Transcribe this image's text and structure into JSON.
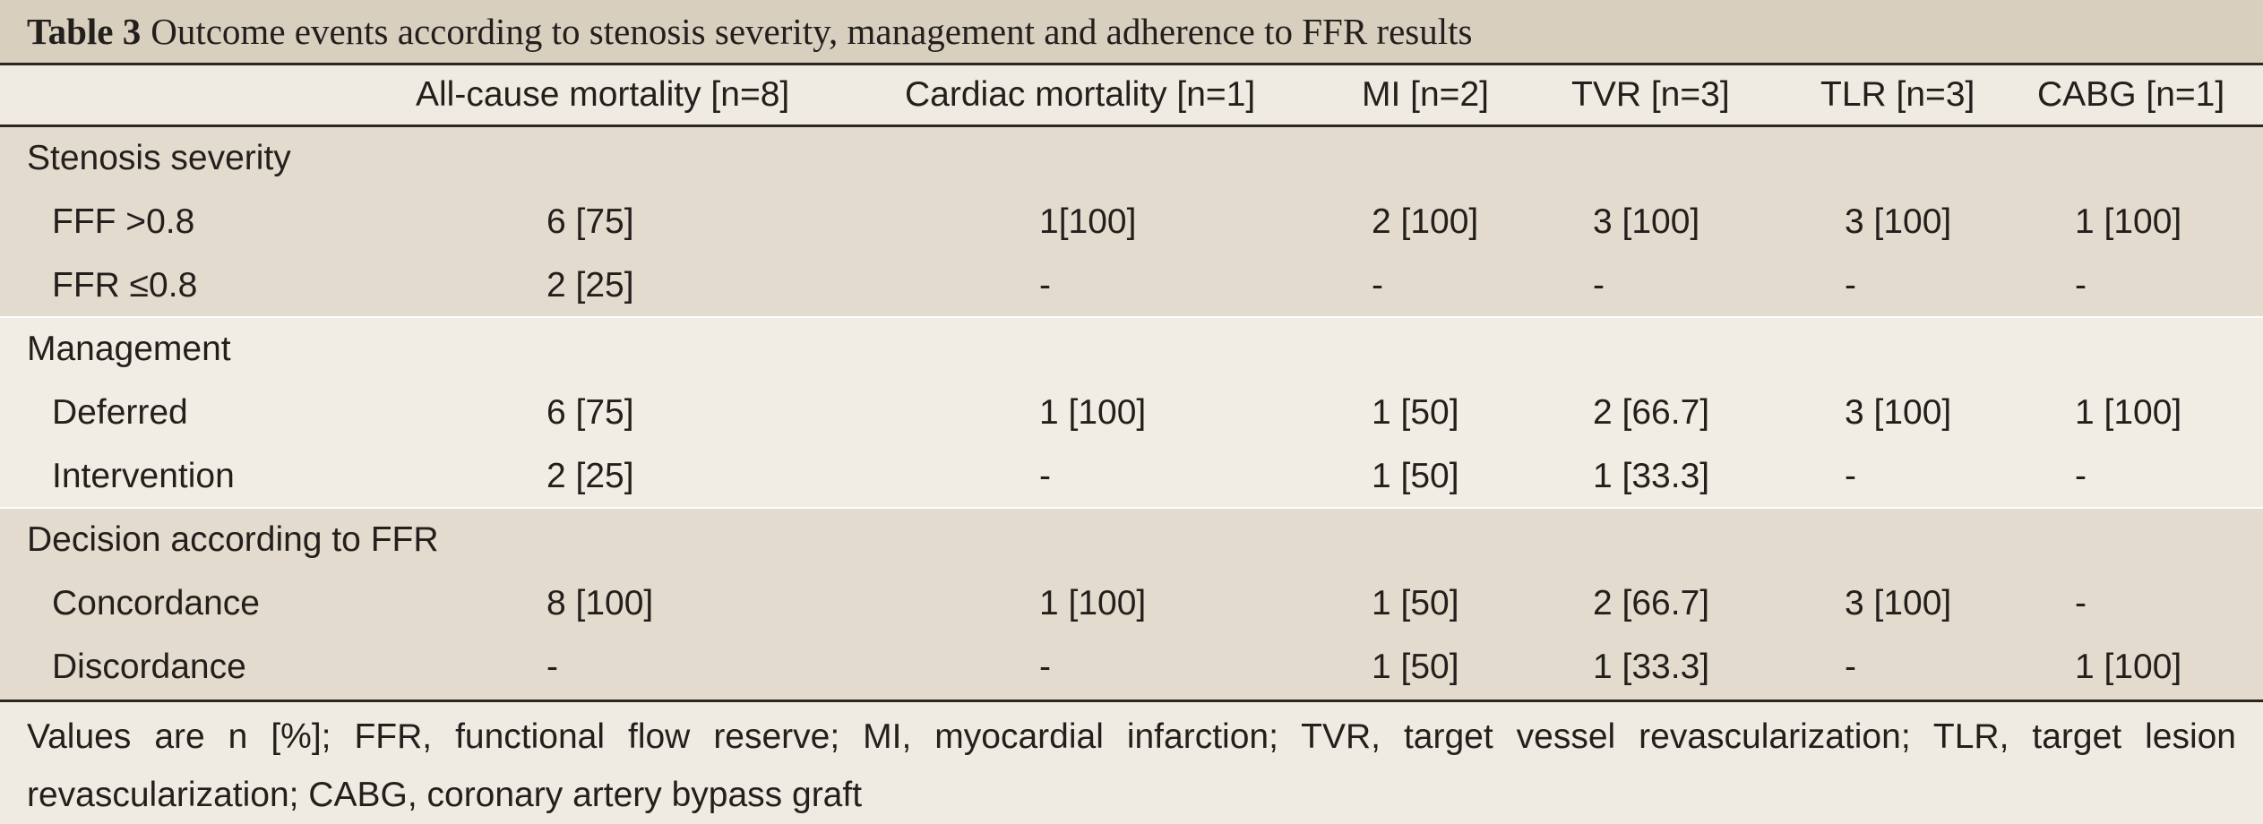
{
  "title": {
    "label": "Table 3",
    "text": "Outcome events according to stenosis severity, management and adherence to FFR results"
  },
  "columns": [
    "All-cause mortality [n=8]",
    "Cardiac mortality [n=1]",
    "MI [n=2]",
    "TVR [n=3]",
    "TLR [n=3]",
    "CABG [n=1]"
  ],
  "groups": [
    {
      "title": "Stenosis severity",
      "rows": [
        {
          "label": "FFF >0.8",
          "values": [
            "6 [75]",
            "1[100]",
            "2 [100]",
            "3 [100]",
            "3 [100]",
            "1 [100]"
          ]
        },
        {
          "label": "FFR ≤0.8",
          "values": [
            "2 [25]",
            "-",
            "-",
            "-",
            "-",
            "-"
          ]
        }
      ]
    },
    {
      "title": "Management",
      "rows": [
        {
          "label": "Deferred",
          "values": [
            "6 [75]",
            "1 [100]",
            "1 [50]",
            "2 [66.7]",
            "3 [100]",
            "1 [100]"
          ]
        },
        {
          "label": "Intervention",
          "values": [
            "2 [25]",
            "-",
            "1 [50]",
            "1 [33.3]",
            "-",
            "-"
          ]
        }
      ]
    },
    {
      "title": "Decision according to FFR",
      "rows": [
        {
          "label": "Concordance",
          "values": [
            "8 [100]",
            "1 [100]",
            "1 [50]",
            "2 [66.7]",
            "3 [100]",
            "-"
          ]
        },
        {
          "label": "Discordance",
          "values": [
            "-",
            "-",
            "1 [50]",
            "1 [33.3]",
            "-",
            "1 [100]"
          ]
        }
      ]
    }
  ],
  "footnote": "Values are n [%]; FFR, functional flow reserve; MI, myocardial infarction; TVR, target vessel revascularization; TLR, target lesion revascularization; CABG, coronary artery bypass graft"
}
